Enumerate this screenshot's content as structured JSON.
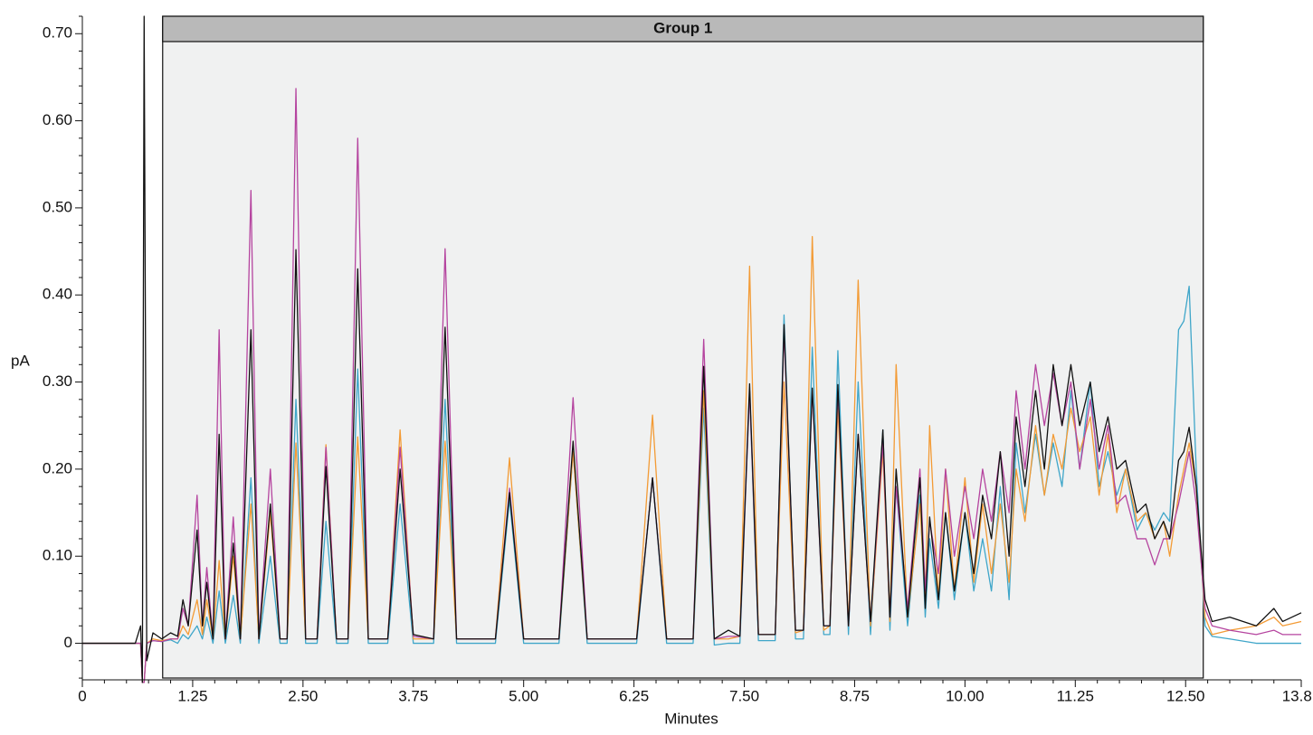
{
  "chart_data": {
    "type": "line",
    "x_label": "Minutes",
    "y_label": "pA",
    "group": {
      "label": "Group 1",
      "start": 0.91,
      "end": 12.7
    },
    "xlim": [
      0,
      13.81
    ],
    "xticks": [
      0,
      1.25,
      {
        "value": 2.5,
        "label": "2.50"
      },
      3.75,
      {
        "value": 5,
        "label": "5.00"
      },
      6.25,
      {
        "value": 7.5,
        "label": "7.50"
      },
      8.75,
      {
        "value": 10,
        "label": "10.00"
      },
      11.25,
      {
        "value": 12.5,
        "label": "12.50"
      },
      13.81
    ],
    "ylim": [
      -0.042,
      0.72
    ],
    "yticks": [
      0,
      {
        "value": 0.1,
        "label": "0.10"
      },
      {
        "value": 0.2,
        "label": "0.20"
      },
      {
        "value": 0.3,
        "label": "0.30"
      },
      {
        "value": 0.4,
        "label": "0.40"
      },
      {
        "value": 0.5,
        "label": "0.50"
      },
      {
        "value": 0.6,
        "label": "0.60"
      },
      {
        "value": 0.7,
        "label": "0.70"
      }
    ],
    "x": [
      0,
      0.6,
      0.66,
      0.68,
      0.7,
      0.73,
      0.8,
      0.9,
      1.0,
      1.08,
      1.14,
      1.2,
      1.3,
      1.36,
      1.41,
      1.48,
      1.55,
      1.62,
      1.71,
      1.79,
      1.91,
      2.0,
      2.13,
      2.24,
      2.32,
      2.42,
      2.53,
      2.66,
      2.76,
      2.88,
      3.01,
      3.12,
      3.24,
      3.46,
      3.6,
      3.75,
      3.98,
      4.11,
      4.24,
      4.68,
      4.84,
      5.0,
      5.4,
      5.56,
      5.72,
      6.28,
      6.46,
      6.62,
      6.92,
      7.04,
      7.16,
      7.32,
      7.45,
      7.56,
      7.66,
      7.85,
      7.95,
      8.08,
      8.17,
      8.27,
      8.4,
      8.47,
      8.56,
      8.68,
      8.79,
      8.93,
      9.07,
      9.15,
      9.22,
      9.35,
      9.49,
      9.55,
      9.6,
      9.7,
      9.78,
      9.88,
      10.0,
      10.1,
      10.2,
      10.3,
      10.4,
      10.5,
      10.58,
      10.68,
      10.8,
      10.9,
      11.0,
      11.1,
      11.2,
      11.3,
      11.42,
      11.52,
      11.62,
      11.72,
      11.82,
      11.95,
      12.05,
      12.15,
      12.25,
      12.32,
      12.42,
      12.48,
      12.54,
      12.62,
      12.72,
      12.8,
      13.0,
      13.3,
      13.5,
      13.6,
      13.81
    ],
    "series": [
      {
        "color": "#3fa6c9",
        "values": [
          0,
          0,
          0,
          -0.045,
          -0.045,
          0,
          0.003,
          0.002,
          0.004,
          0,
          0.01,
          0.005,
          0.02,
          0.005,
          0.03,
          0,
          0.06,
          0,
          0.055,
          0,
          0.19,
          0,
          0.1,
          0,
          0,
          0.28,
          0,
          0,
          0.14,
          0,
          0,
          0.315,
          0,
          0,
          0.16,
          0,
          0,
          0.28,
          0,
          0,
          0.165,
          0,
          0,
          0.22,
          0,
          0,
          0.19,
          0,
          0,
          0.27,
          -0.002,
          0,
          0,
          0.29,
          0.003,
          0.003,
          0.377,
          0.005,
          0.005,
          0.34,
          0.01,
          0.01,
          0.336,
          0.01,
          0.3,
          0.01,
          0.245,
          0.015,
          0.18,
          0.02,
          0.17,
          0.03,
          0.12,
          0.04,
          0.15,
          0.05,
          0.15,
          0.06,
          0.12,
          0.06,
          0.18,
          0.05,
          0.23,
          0.15,
          0.24,
          0.17,
          0.23,
          0.18,
          0.29,
          0.2,
          0.3,
          0.18,
          0.22,
          0.17,
          0.2,
          0.13,
          0.15,
          0.13,
          0.15,
          0.14,
          0.36,
          0.37,
          0.41,
          0.2,
          0.02,
          0.008,
          0.005,
          0,
          0,
          0,
          0
        ]
      },
      {
        "color": "#f39b35",
        "values": [
          0,
          0,
          0,
          -0.045,
          -0.045,
          0,
          0.005,
          0.003,
          0.005,
          0.005,
          0.02,
          0.01,
          0.05,
          0.01,
          0.05,
          0.005,
          0.095,
          0.005,
          0.1,
          0.005,
          0.16,
          0.005,
          0.15,
          0.005,
          0.005,
          0.23,
          0.005,
          0.005,
          0.228,
          0.005,
          0.005,
          0.237,
          0.005,
          0.005,
          0.245,
          0.005,
          0.005,
          0.232,
          0.005,
          0.005,
          0.213,
          0.005,
          0.005,
          0.22,
          0.005,
          0.005,
          0.262,
          0.005,
          0.005,
          0.29,
          0.005,
          0.005,
          0.008,
          0.433,
          0.01,
          0.01,
          0.3,
          0.012,
          0.015,
          0.467,
          0.015,
          0.02,
          0.27,
          0.02,
          0.417,
          0.02,
          0.22,
          0.025,
          0.32,
          0.03,
          0.16,
          0.05,
          0.25,
          0.05,
          0.2,
          0.06,
          0.19,
          0.07,
          0.16,
          0.08,
          0.16,
          0.07,
          0.2,
          0.14,
          0.25,
          0.17,
          0.24,
          0.2,
          0.27,
          0.22,
          0.26,
          0.17,
          0.24,
          0.15,
          0.2,
          0.14,
          0.15,
          0.12,
          0.14,
          0.1,
          0.17,
          0.2,
          0.23,
          0.18,
          0.03,
          0.01,
          0.015,
          0.02,
          0.03,
          0.02,
          0.025
        ]
      },
      {
        "color": "#b5449f",
        "values": [
          0,
          0,
          0,
          -0.045,
          -0.045,
          0,
          0.003,
          0.002,
          0.005,
          0.005,
          0.04,
          0.02,
          0.17,
          0.02,
          0.087,
          0.005,
          0.36,
          0.005,
          0.145,
          0.005,
          0.52,
          0.005,
          0.2,
          0.005,
          0.005,
          0.637,
          0.005,
          0.005,
          0.225,
          0.005,
          0.005,
          0.58,
          0.005,
          0.005,
          0.225,
          0.008,
          0.005,
          0.453,
          0.005,
          0.005,
          0.178,
          0.005,
          0.005,
          0.282,
          0.005,
          0.005,
          0.19,
          0.005,
          0.005,
          0.349,
          0.005,
          0.008,
          0.008,
          0.29,
          0.01,
          0.01,
          0.36,
          0.015,
          0.015,
          0.29,
          0.02,
          0.02,
          0.29,
          0.02,
          0.24,
          0.025,
          0.23,
          0.03,
          0.18,
          0.04,
          0.2,
          0.06,
          0.14,
          0.08,
          0.2,
          0.1,
          0.18,
          0.12,
          0.2,
          0.14,
          0.22,
          0.15,
          0.29,
          0.2,
          0.32,
          0.25,
          0.31,
          0.25,
          0.3,
          0.2,
          0.28,
          0.2,
          0.25,
          0.16,
          0.17,
          0.12,
          0.12,
          0.09,
          0.12,
          0.12,
          0.16,
          0.19,
          0.22,
          0.16,
          0.04,
          0.02,
          0.015,
          0.01,
          0.015,
          0.01,
          0.01
        ]
      },
      {
        "color": "#111111",
        "values": [
          0,
          0,
          0.02,
          -0.045,
          0.72,
          -0.02,
          0.012,
          0.005,
          0.012,
          0.008,
          0.05,
          0.02,
          0.13,
          0.02,
          0.07,
          0.005,
          0.24,
          0.005,
          0.115,
          0.005,
          0.36,
          0.005,
          0.16,
          0.005,
          0.005,
          0.452,
          0.005,
          0.005,
          0.203,
          0.005,
          0.005,
          0.43,
          0.005,
          0.005,
          0.2,
          0.01,
          0.005,
          0.363,
          0.005,
          0.005,
          0.173,
          0.005,
          0.005,
          0.232,
          0.005,
          0.005,
          0.19,
          0.005,
          0.005,
          0.318,
          0.005,
          0.015,
          0.008,
          0.298,
          0.01,
          0.01,
          0.366,
          0.015,
          0.015,
          0.293,
          0.02,
          0.02,
          0.297,
          0.02,
          0.24,
          0.025,
          0.245,
          0.03,
          0.2,
          0.03,
          0.19,
          0.04,
          0.145,
          0.05,
          0.15,
          0.06,
          0.15,
          0.08,
          0.17,
          0.12,
          0.22,
          0.1,
          0.26,
          0.18,
          0.29,
          0.2,
          0.32,
          0.25,
          0.32,
          0.25,
          0.3,
          0.22,
          0.26,
          0.2,
          0.21,
          0.15,
          0.16,
          0.12,
          0.14,
          0.12,
          0.21,
          0.22,
          0.248,
          0.18,
          0.05,
          0.025,
          0.03,
          0.02,
          0.04,
          0.025,
          0.035
        ]
      }
    ]
  }
}
